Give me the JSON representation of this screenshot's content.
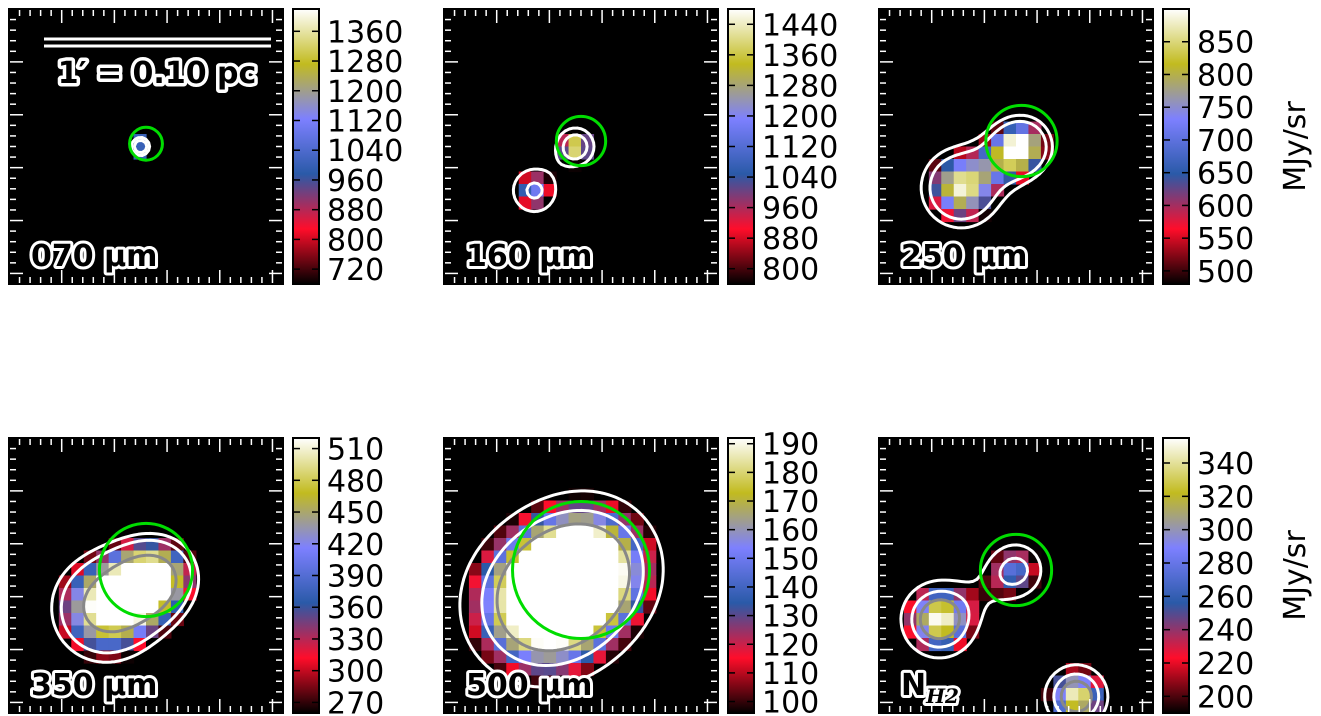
{
  "colors": {
    "map_stops": [
      "#000000",
      "#ff0d2a",
      "#2a5aa8",
      "#7d80ff",
      "#c2bb1f",
      "#ffffff"
    ],
    "contour": "#ffffff",
    "inner_contour": "#888888",
    "aperture": "#00dd00",
    "scalebar": "#ffffff"
  },
  "scalebar": {
    "label": "1′ = 0.10 pc"
  },
  "chart_data": [
    {
      "type": "heatmap",
      "label": "070 μm",
      "unit_label": "",
      "colorbar_ticks": [
        720,
        800,
        880,
        960,
        1040,
        1120,
        1200,
        1280,
        1360
      ],
      "vmin": 680,
      "vmax": 1420,
      "sources": [
        {
          "x": 0.48,
          "y": 0.5,
          "peak": 1400,
          "sigma": 0.028
        }
      ],
      "levels": [
        700,
        1000
      ],
      "aperture": {
        "x": 0.5,
        "y": 0.49,
        "r": 0.06
      }
    },
    {
      "type": "heatmap",
      "label": "160 μm",
      "unit_label": "",
      "colorbar_ticks": [
        800,
        880,
        960,
        1040,
        1120,
        1200,
        1280,
        1360,
        1440
      ],
      "vmin": 760,
      "vmax": 1480,
      "sources": [
        {
          "x": 0.48,
          "y": 0.5,
          "peak": 1480,
          "sigma": 0.055
        },
        {
          "x": 0.33,
          "y": 0.66,
          "peak": 1180,
          "sigma": 0.075
        }
      ],
      "levels": [
        700,
        1100
      ],
      "aperture": {
        "x": 0.5,
        "y": 0.48,
        "r": 0.09
      }
    },
    {
      "type": "heatmap",
      "label": "250 μm",
      "unit_label": "MJy/sr",
      "colorbar_ticks": [
        500,
        550,
        600,
        650,
        700,
        750,
        800,
        850
      ],
      "vmin": 480,
      "vmax": 900,
      "sources": [
        {
          "x": 0.52,
          "y": 0.5,
          "peak": 900,
          "sigma": 0.09
        },
        {
          "x": 0.3,
          "y": 0.65,
          "peak": 880,
          "sigma": 0.12
        }
      ],
      "levels": [
        420,
        560
      ],
      "aperture": {
        "x": 0.52,
        "y": 0.48,
        "r": 0.13
      }
    },
    {
      "type": "heatmap",
      "label": "350 μm",
      "unit_label": "",
      "colorbar_ticks": [
        270,
        300,
        330,
        360,
        390,
        420,
        450,
        480,
        510
      ],
      "vmin": 260,
      "vmax": 520,
      "sources": [
        {
          "x": 0.35,
          "y": 0.62,
          "peak": 520,
          "sigma": 0.16
        },
        {
          "x": 0.55,
          "y": 0.5,
          "peak": 420,
          "sigma": 0.12
        }
      ],
      "levels": [
        250,
        320,
        480
      ],
      "aperture": {
        "x": 0.5,
        "y": 0.48,
        "r": 0.17
      }
    },
    {
      "type": "heatmap",
      "label": "500 μm",
      "unit_label": "",
      "colorbar_ticks": [
        100,
        110,
        120,
        130,
        140,
        150,
        160,
        170,
        180,
        190
      ],
      "vmin": 96,
      "vmax": 192,
      "sources": [
        {
          "x": 0.34,
          "y": 0.62,
          "peak": 192,
          "sigma": 0.22
        },
        {
          "x": 0.55,
          "y": 0.45,
          "peak": 160,
          "sigma": 0.2
        }
      ],
      "levels": [
        90,
        140,
        178
      ],
      "aperture": {
        "x": 0.5,
        "y": 0.48,
        "r": 0.25
      }
    },
    {
      "type": "heatmap",
      "label": "N",
      "label_sub": "H2",
      "unit_label": "MJy/sr",
      "colorbar_ticks": [
        200,
        220,
        240,
        260,
        280,
        300,
        320,
        340
      ],
      "vmin": 190,
      "vmax": 355,
      "sources": [
        {
          "x": 0.22,
          "y": 0.66,
          "peak": 355,
          "sigma": 0.12
        },
        {
          "x": 0.72,
          "y": 0.94,
          "peak": 350,
          "sigma": 0.1
        },
        {
          "x": 0.5,
          "y": 0.48,
          "peak": 270,
          "sigma": 0.1
        }
      ],
      "levels": [
        180,
        250,
        300
      ],
      "aperture": {
        "x": 0.5,
        "y": 0.48,
        "r": 0.13
      }
    }
  ]
}
